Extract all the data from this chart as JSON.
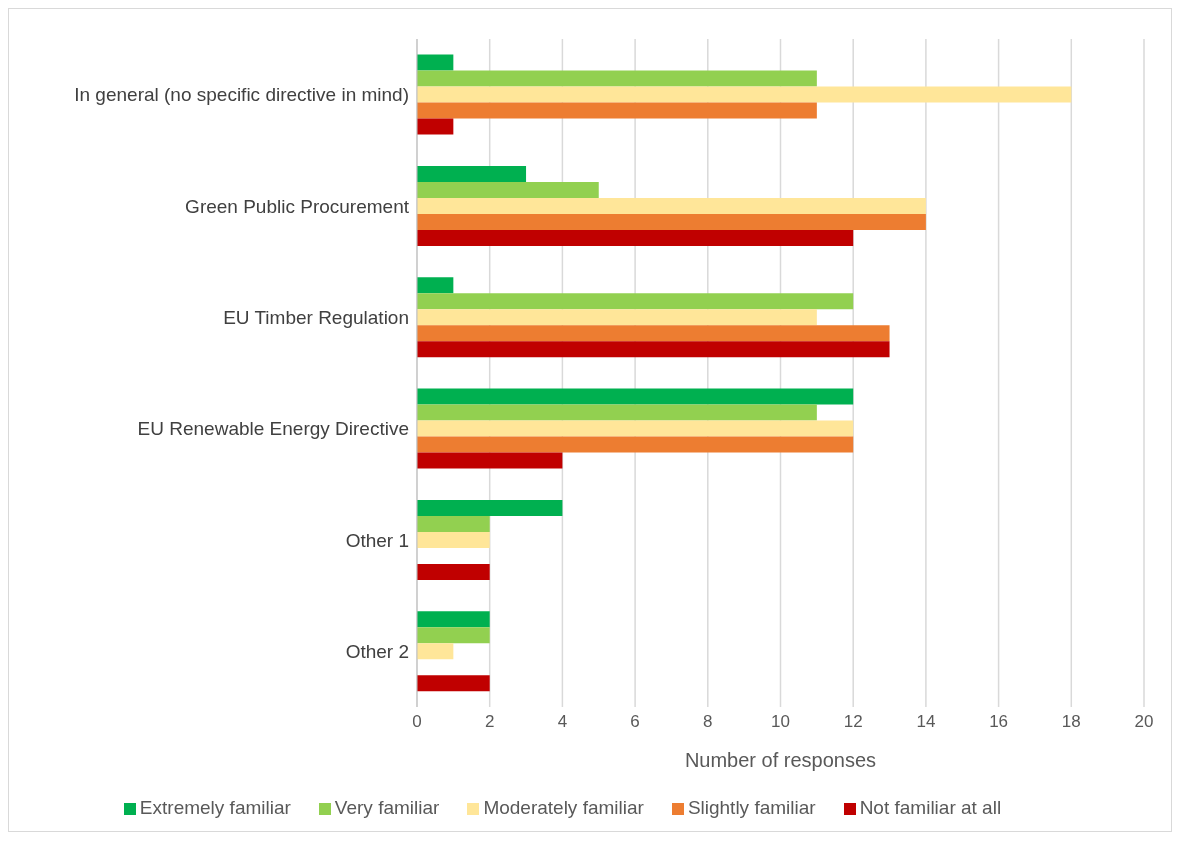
{
  "chart_data": {
    "type": "bar",
    "orientation": "horizontal",
    "xlabel": "Number of responses",
    "categories": [
      "In general (no specific directive in mind)",
      "Green Public Procurement",
      "EU Timber Regulation",
      "EU Renewable Energy Directive",
      "Other 1",
      "Other 2"
    ],
    "series": [
      {
        "name": "Extremely familiar",
        "color": "#00b050",
        "values": [
          1,
          3,
          1,
          12,
          4,
          2
        ]
      },
      {
        "name": "Very familiar",
        "color": "#92d050",
        "values": [
          11,
          5,
          12,
          11,
          2,
          2
        ]
      },
      {
        "name": "Moderately familiar",
        "color": "#ffe699",
        "values": [
          18,
          14,
          11,
          12,
          2,
          1
        ]
      },
      {
        "name": "Slightly familiar",
        "color": "#ed7d31",
        "values": [
          11,
          14,
          13,
          12,
          0,
          0
        ]
      },
      {
        "name": "Not familiar at all",
        "color": "#c00000",
        "values": [
          1,
          12,
          13,
          4,
          2,
          2
        ]
      }
    ],
    "xlim": [
      0,
      20
    ],
    "xticks": [
      0,
      2,
      4,
      6,
      8,
      10,
      12,
      14,
      16,
      18,
      20
    ],
    "grid": "x",
    "legend": "bottom"
  }
}
